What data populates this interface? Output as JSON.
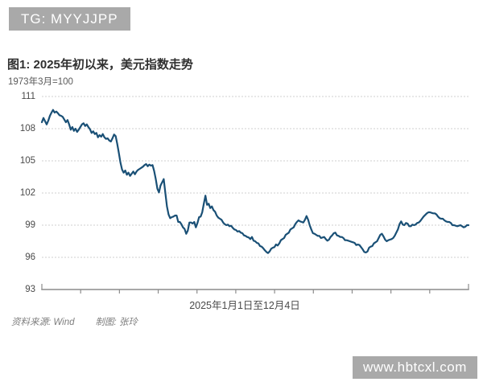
{
  "header_badge": {
    "label": "TG: MYYJJPP",
    "bg_color": "#a9a9a9",
    "text_color": "#ffffff"
  },
  "figure": {
    "title": "图1: 2025年初以来，美元指数走势",
    "subtitle": "1973年3月=100"
  },
  "footer": {
    "source_label": "资料来源: Wind",
    "author_label": "制图: 张玲"
  },
  "watermark": {
    "label": "www.hbtcxl.com",
    "bg_color": "#a9a9a9",
    "text_color": "#ffffff"
  },
  "chart_data": {
    "type": "line",
    "title": "图1: 2025年初以来，美元指数走势",
    "unit_note": "1973年3月=100",
    "xlabel": "2025年1月1日至12月4日",
    "x_start": "2025-01-01",
    "x_end": "2025-12-04",
    "ylim": [
      93,
      111
    ],
    "yticks": [
      111,
      108,
      105,
      102,
      99,
      96,
      93
    ],
    "x_tick_count": 12,
    "grid": true,
    "legend": "none",
    "line_color": "#1a5076",
    "axis_color": "#8c8c8c",
    "grid_color": "#cfcfcf",
    "series": [
      {
        "name": "美元指数 (US Dollar Index)",
        "values": [
          108.6,
          109.0,
          108.7,
          108.4,
          108.75,
          109.2,
          109.5,
          109.75,
          109.5,
          109.6,
          109.45,
          109.25,
          109.2,
          109.1,
          108.85,
          108.6,
          108.8,
          108.4,
          107.9,
          108.15,
          107.8,
          108.0,
          107.7,
          107.9,
          108.15,
          108.4,
          108.5,
          108.25,
          108.4,
          108.15,
          107.95,
          107.6,
          107.75,
          107.5,
          107.6,
          107.2,
          107.4,
          107.25,
          107.5,
          107.2,
          107.05,
          107.1,
          106.9,
          106.8,
          107.1,
          107.45,
          107.3,
          106.6,
          105.75,
          104.85,
          104.2,
          103.9,
          104.1,
          103.7,
          103.9,
          103.6,
          103.8,
          104.0,
          103.75,
          104.0,
          104.15,
          104.25,
          104.35,
          104.45,
          104.6,
          104.7,
          104.5,
          104.65,
          104.55,
          104.6,
          104.05,
          103.3,
          102.4,
          102.05,
          102.7,
          103.0,
          103.3,
          102.0,
          100.75,
          100.0,
          99.65,
          99.75,
          99.8,
          99.9,
          99.9,
          99.3,
          99.3,
          99.1,
          98.8,
          98.65,
          98.2,
          98.5,
          99.25,
          99.25,
          99.15,
          99.3,
          98.8,
          99.2,
          99.75,
          99.8,
          100.2,
          101.0,
          101.75,
          100.9,
          101.0,
          100.6,
          100.75,
          100.4,
          100.25,
          99.9,
          99.7,
          99.6,
          99.5,
          99.25,
          99.1,
          99.0,
          99.05,
          98.9,
          98.95,
          98.75,
          98.6,
          98.55,
          98.4,
          98.45,
          98.3,
          98.25,
          98.05,
          98.0,
          97.9,
          97.85,
          97.7,
          97.9,
          97.55,
          97.5,
          97.35,
          97.3,
          97.05,
          97.0,
          96.85,
          96.65,
          96.5,
          96.4,
          96.55,
          96.8,
          96.9,
          96.95,
          97.2,
          97.1,
          97.3,
          97.6,
          97.7,
          97.8,
          98.1,
          98.2,
          98.3,
          98.6,
          98.7,
          98.8,
          99.1,
          99.3,
          99.45,
          99.35,
          99.3,
          99.25,
          99.5,
          99.85,
          99.5,
          99.0,
          98.6,
          98.25,
          98.2,
          98.1,
          98.0,
          98.0,
          97.8,
          97.85,
          97.9,
          97.7,
          97.55,
          97.65,
          97.9,
          98.05,
          98.25,
          98.3,
          98.05,
          98.0,
          97.9,
          97.9,
          97.8,
          97.6,
          97.6,
          97.55,
          97.5,
          97.45,
          97.4,
          97.35,
          97.15,
          97.2,
          97.15,
          96.95,
          96.75,
          96.5,
          96.45,
          96.55,
          96.9,
          97.0,
          97.05,
          97.3,
          97.4,
          97.5,
          97.8,
          98.1,
          98.2,
          97.95,
          97.65,
          97.5,
          97.6,
          97.65,
          97.7,
          97.8,
          98.0,
          98.3,
          98.6,
          99.1,
          99.35,
          99.05,
          99.0,
          99.2,
          99.15,
          98.9,
          98.9,
          99.05,
          99.0,
          99.05,
          99.2,
          99.25,
          99.4,
          99.6,
          99.8,
          99.95,
          100.1,
          100.2,
          100.2,
          100.15,
          100.1,
          100.1,
          100.0,
          99.8,
          99.65,
          99.6,
          99.6,
          99.45,
          99.35,
          99.3,
          99.3,
          99.2,
          99.0,
          99.0,
          98.95,
          98.9,
          98.95,
          99.0,
          98.9,
          98.8,
          98.85,
          99.0,
          99.0
        ]
      }
    ]
  }
}
